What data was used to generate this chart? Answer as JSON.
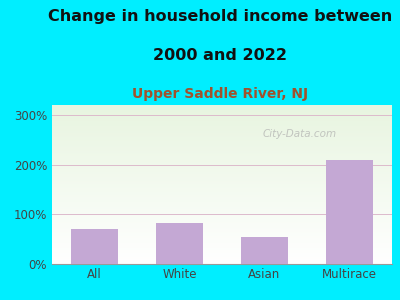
{
  "title_line1": "Change in household income between",
  "title_line2": "2000 and 2022",
  "subtitle": "Upper Saddle River, NJ",
  "categories": [
    "All",
    "White",
    "Asian",
    "Multirace"
  ],
  "values": [
    70,
    83,
    55,
    210
  ],
  "bar_color": "#c4a8d4",
  "figure_bg": "#00eeff",
  "plot_bg_topleft": "#e8f5e0",
  "plot_bg_bottomright": "#ffffff",
  "title_fontsize": 11.5,
  "subtitle_fontsize": 10,
  "subtitle_color": "#a0522d",
  "tick_label_color": "#444444",
  "yticks": [
    0,
    100,
    200,
    300
  ],
  "ytick_labels": [
    "0%",
    "100%",
    "200%",
    "300%"
  ],
  "ylim": [
    0,
    320
  ],
  "watermark": "City-Data.com",
  "grid_color": "#ddbbcc",
  "bar_width": 0.55
}
